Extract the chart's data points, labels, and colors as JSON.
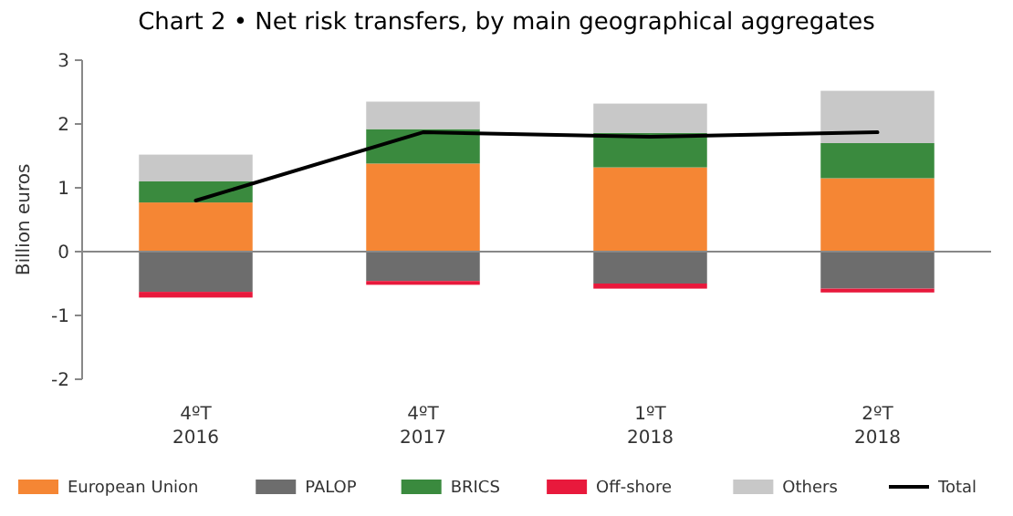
{
  "chart_data": {
    "type": "bar",
    "title": "Chart 2 • Net risk transfers, by main geographical  aggregates",
    "ylabel": "Billion euros",
    "categories": [
      "4ºT\n2016",
      "4ºT\n2017",
      "1ºT\n2018",
      "2ºT\n2018"
    ],
    "stacked": true,
    "series": [
      {
        "name": "European Union",
        "color": "#f58634",
        "values": [
          0.77,
          1.38,
          1.32,
          1.15
        ]
      },
      {
        "name": "PALOP",
        "color": "#6d6d6d",
        "values": [
          -0.63,
          -0.46,
          -0.5,
          -0.58
        ]
      },
      {
        "name": "BRICS",
        "color": "#3a8a3e",
        "values": [
          0.33,
          0.54,
          0.54,
          0.55
        ]
      },
      {
        "name": "Off-shore",
        "color": "#e8193c",
        "values": [
          -0.09,
          -0.06,
          -0.08,
          -0.06
        ]
      },
      {
        "name": "Others",
        "color": "#c8c8c8",
        "values": [
          0.42,
          0.43,
          0.46,
          0.82
        ]
      },
      {
        "name": "Total",
        "type": "line",
        "color": "#000000",
        "values": [
          0.8,
          1.87,
          1.8,
          1.87
        ]
      }
    ],
    "ylim": [
      -2,
      3
    ],
    "yticks": [
      -2,
      -1,
      0,
      1,
      2,
      3
    ],
    "legend": "bottom"
  }
}
